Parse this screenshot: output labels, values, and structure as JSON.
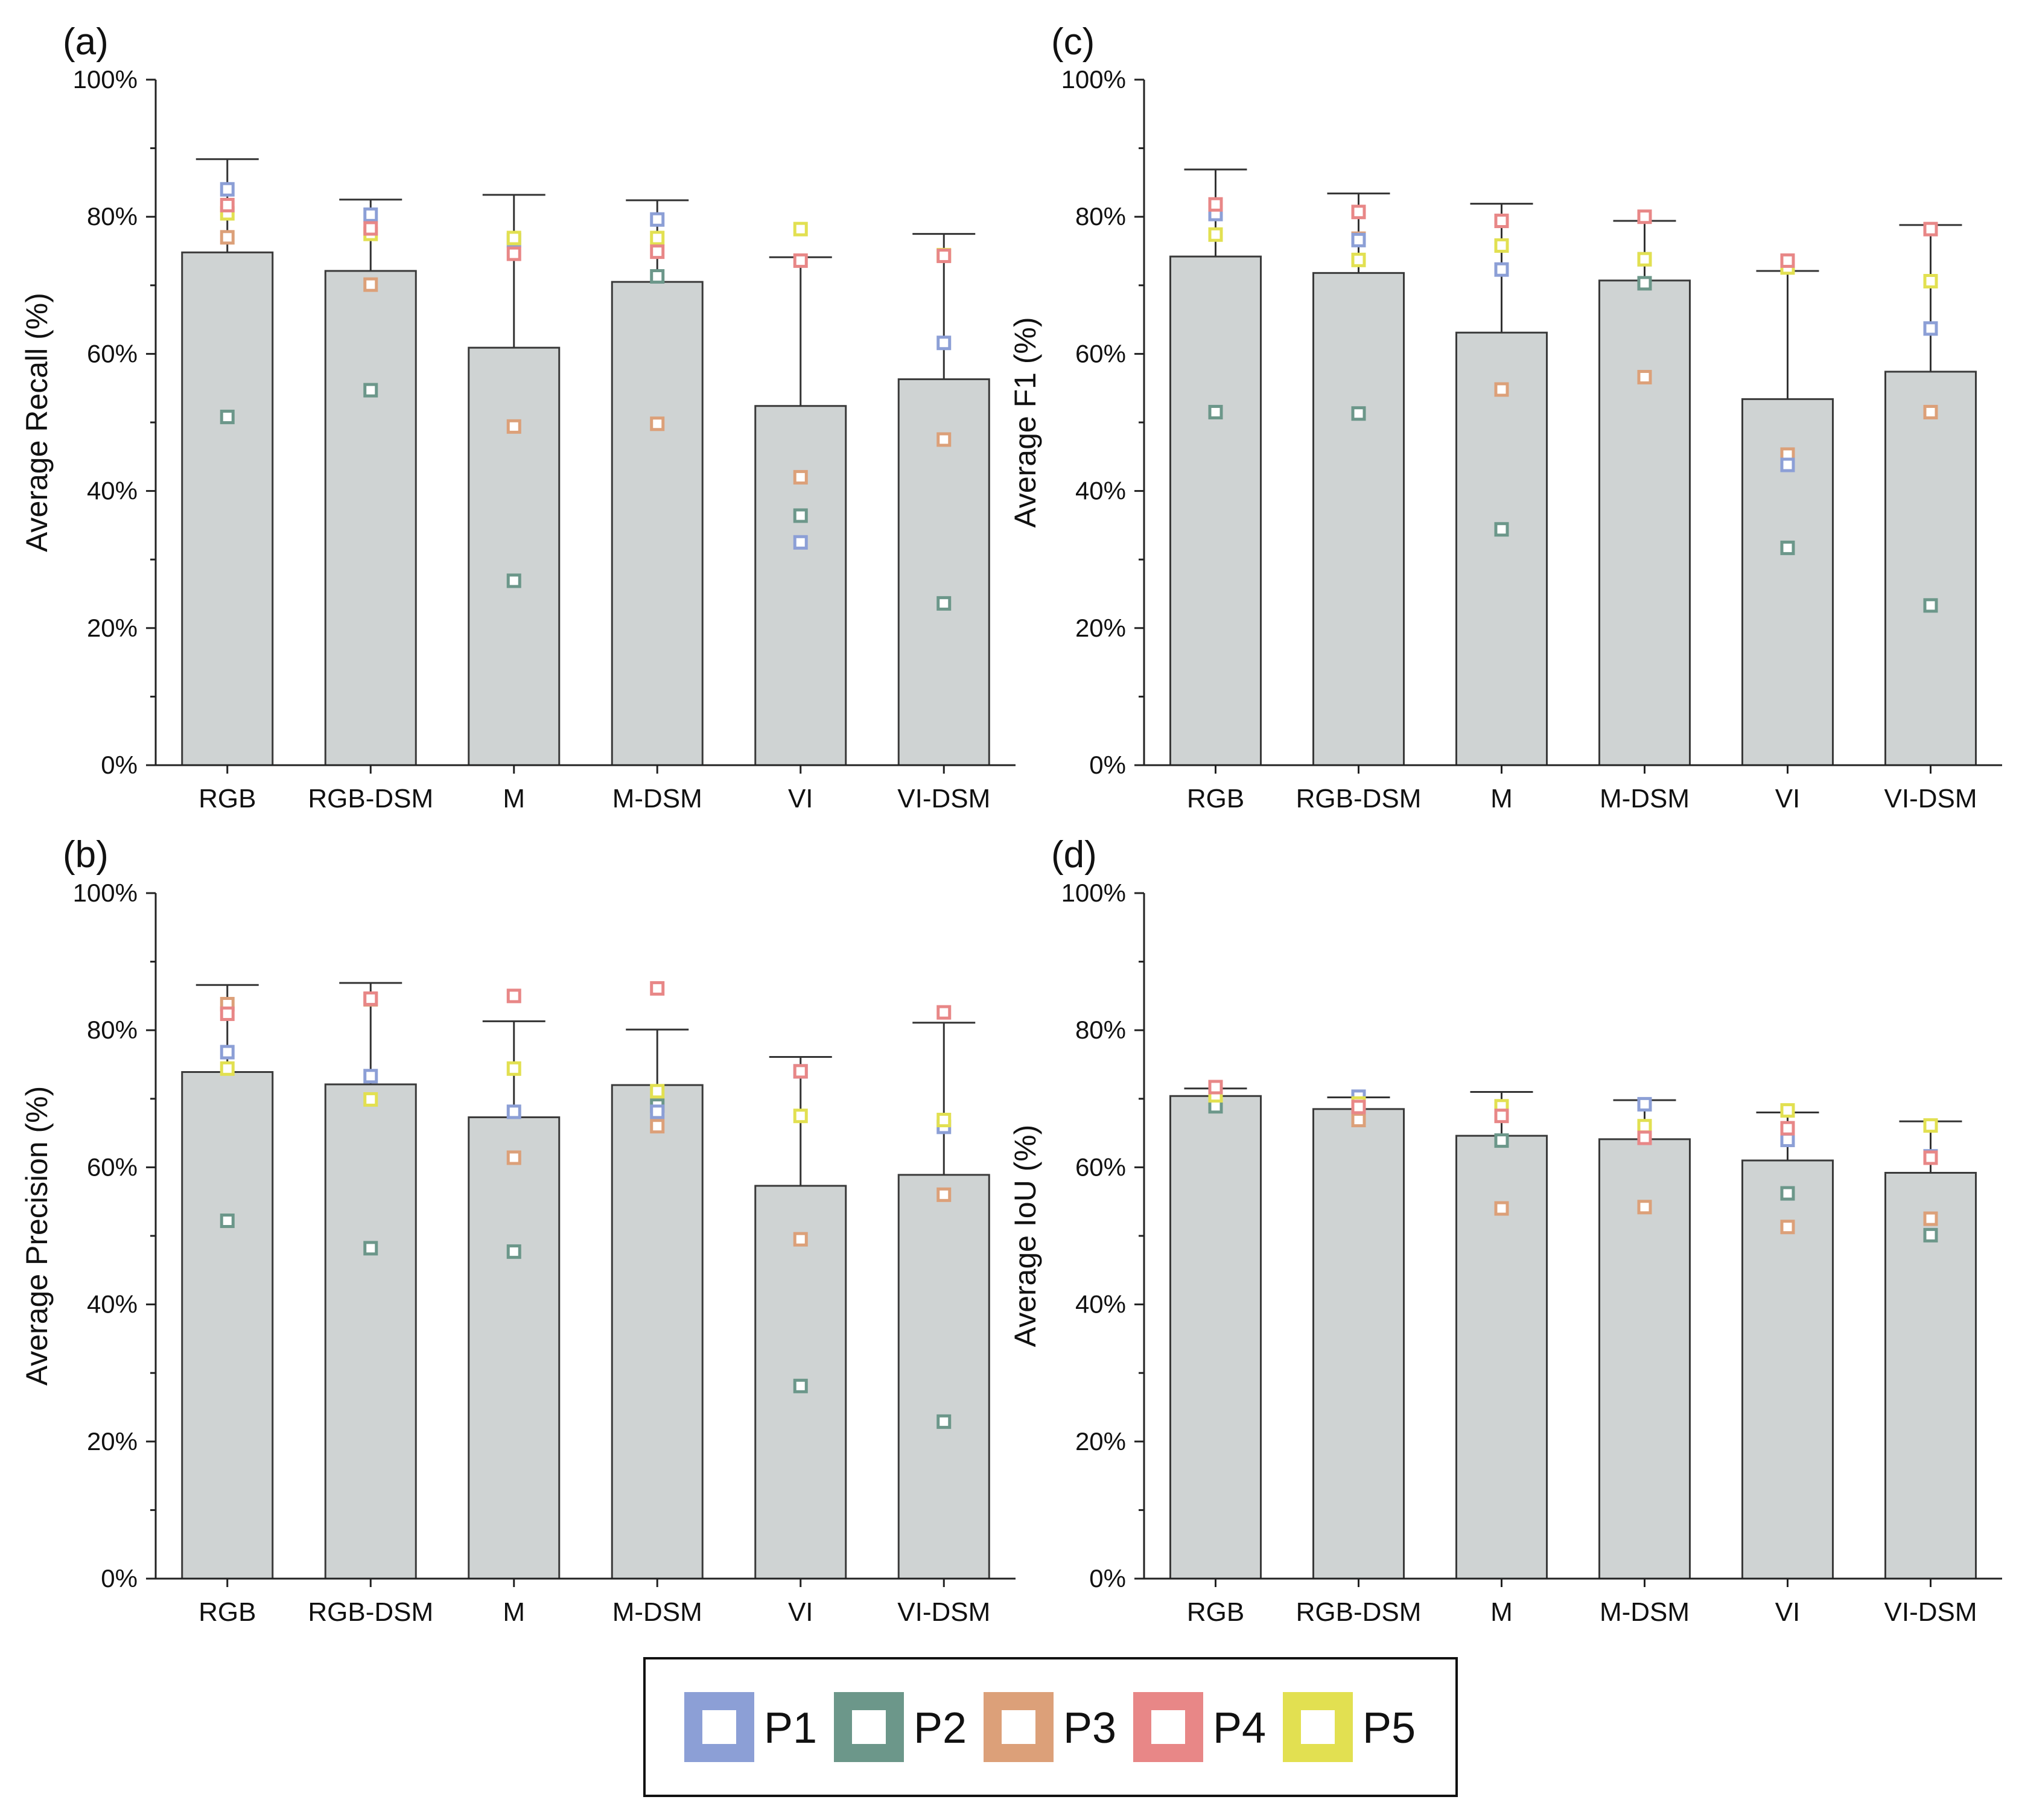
{
  "chart_data": [
    {
      "panel": "(a)",
      "type": "bar",
      "ylabel": "Average Recall (%)",
      "categories": [
        "RGB",
        "RGB-DSM",
        "M",
        "M-DSM",
        "VI",
        "VI-DSM"
      ],
      "values": [
        74.8,
        72.1,
        60.9,
        70.5,
        52.4,
        56.3
      ],
      "error_upper": [
        88.4,
        82.5,
        83.2,
        82.4,
        74.1,
        77.5
      ],
      "ylim": [
        0,
        100
      ],
      "yticks": [
        "0%",
        "20%",
        "40%",
        "60%",
        "80%",
        "100%"
      ],
      "points": {
        "P1": [
          84.0,
          80.3,
          76.6,
          79.6,
          32.5,
          61.6
        ],
        "P2": [
          50.8,
          54.7,
          26.9,
          71.3,
          36.4,
          23.6
        ],
        "P3": [
          77.0,
          70.1,
          49.4,
          49.8,
          42.0,
          47.5
        ],
        "P4": [
          81.7,
          78.3,
          74.6,
          74.9,
          73.6,
          74.3
        ],
        "P5": [
          80.5,
          77.5,
          76.9,
          76.9,
          78.2,
          74.4
        ]
      }
    },
    {
      "panel": "(b)",
      "type": "bar",
      "ylabel": "Average Precision (%)",
      "categories": [
        "RGB",
        "RGB-DSM",
        "M",
        "M-DSM",
        "VI",
        "VI-DSM"
      ],
      "values": [
        73.9,
        72.1,
        67.3,
        72.0,
        57.3,
        58.9
      ],
      "error_upper": [
        86.6,
        86.9,
        81.3,
        80.1,
        76.1,
        81.1
      ],
      "ylim": [
        0,
        100
      ],
      "yticks": [
        "0%",
        "20%",
        "40%",
        "60%",
        "80%",
        "100%"
      ],
      "points": {
        "P1": [
          76.8,
          73.3,
          68.1,
          68.1,
          74.0,
          65.9
        ],
        "P2": [
          52.2,
          48.2,
          47.7,
          69.0,
          28.1,
          22.9
        ],
        "P3": [
          83.8,
          84.5,
          61.4,
          66.0,
          49.5,
          56.0
        ],
        "P4": [
          82.4,
          84.6,
          85.0,
          86.1,
          74.0,
          82.6
        ],
        "P5": [
          74.4,
          69.9,
          74.4,
          71.1,
          67.5,
          66.9
        ]
      }
    },
    {
      "panel": "(c)",
      "type": "bar",
      "ylabel": "Average F1 (%)",
      "categories": [
        "RGB",
        "RGB-DSM",
        "M",
        "M-DSM",
        "VI",
        "VI-DSM"
      ],
      "values": [
        74.2,
        71.8,
        63.1,
        70.7,
        53.4,
        57.4
      ],
      "error_upper": [
        86.9,
        83.4,
        81.9,
        79.4,
        72.1,
        78.8
      ],
      "ylim": [
        0,
        100
      ],
      "yticks": [
        "0%",
        "20%",
        "40%",
        "60%",
        "80%",
        "100%"
      ],
      "points": {
        "P1": [
          80.4,
          76.6,
          72.3,
          73.8,
          43.8,
          63.7
        ],
        "P2": [
          51.5,
          51.3,
          34.4,
          70.3,
          31.7,
          23.3
        ],
        "P3": [
          80.9,
          76.8,
          54.8,
          56.6,
          45.3,
          51.5
        ],
        "P4": [
          81.8,
          80.7,
          79.4,
          80.0,
          73.6,
          78.2
        ],
        "P5": [
          77.4,
          73.7,
          75.8,
          73.8,
          72.6,
          70.6
        ]
      }
    },
    {
      "panel": "(d)",
      "type": "bar",
      "ylabel": "Average IoU (%)",
      "categories": [
        "RGB",
        "RGB-DSM",
        "M",
        "M-DSM",
        "VI",
        "VI-DSM"
      ],
      "values": [
        70.4,
        68.5,
        64.6,
        64.1,
        61.0,
        59.2
      ],
      "error_upper": [
        71.5,
        70.2,
        71.0,
        69.8,
        68.0,
        66.7
      ],
      "ylim": [
        0,
        100
      ],
      "yticks": [
        "0%",
        "20%",
        "40%",
        "60%",
        "80%",
        "100%"
      ],
      "points": {
        "P1": [
          70.6,
          70.3,
          68.6,
          69.2,
          64.0,
          61.6
        ],
        "P2": [
          68.9,
          68.0,
          63.9,
          64.9,
          56.2,
          50.1
        ],
        "P3": [
          70.9,
          66.9,
          54.0,
          54.2,
          51.3,
          52.5
        ],
        "P4": [
          71.7,
          68.8,
          67.5,
          64.3,
          65.7,
          61.4
        ],
        "P5": [
          70.5,
          69.3,
          68.9,
          66.0,
          68.3,
          66.1
        ]
      }
    }
  ],
  "legend": [
    {
      "name": "P1",
      "color": "#8c9fd6"
    },
    {
      "name": "P2",
      "color": "#6c978a"
    },
    {
      "name": "P3",
      "color": "#dca079"
    },
    {
      "name": "P4",
      "color": "#e88787"
    },
    {
      "name": "P5",
      "color": "#e2e051"
    }
  ],
  "style": {
    "bar_fill": "#cfd3d3",
    "bar_stroke": "#3a3a3a",
    "axis_color": "#222222"
  }
}
